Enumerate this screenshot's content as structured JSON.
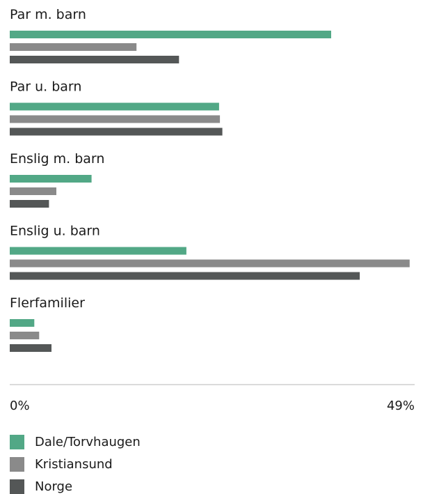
{
  "chart_data": {
    "type": "bar",
    "orientation": "horizontal",
    "categories": [
      "Par m. barn",
      "Par u. barn",
      "Enslig m. barn",
      "Enslig u. barn",
      "Flerfamilier"
    ],
    "series": [
      {
        "name": "Dale/Torvhaugen",
        "color": "#52a886",
        "values": [
          39.3,
          25.6,
          10.0,
          21.6,
          3.0
        ]
      },
      {
        "name": "Kristiansund",
        "color": "#8a8a8a",
        "values": [
          15.5,
          25.7,
          5.7,
          48.9,
          3.6
        ]
      },
      {
        "name": "Norge",
        "color": "#545757",
        "values": [
          20.7,
          26.0,
          4.8,
          42.8,
          5.1
        ]
      }
    ],
    "xlim": [
      0,
      49
    ],
    "ticks": [
      "0%",
      "49%"
    ],
    "legend_position": "bottom-left",
    "grid": false
  }
}
